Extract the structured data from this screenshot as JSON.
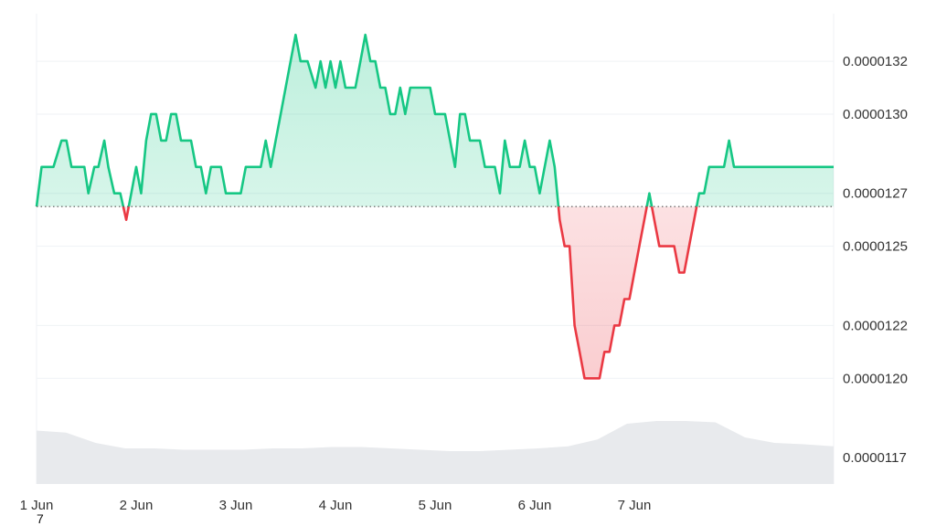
{
  "chart_data": {
    "type": "area",
    "x_tick_labels": [
      "1 Jun",
      "2 Jun",
      "3 Jun",
      "4 Jun",
      "5 Jun",
      "6 Jun",
      "7 Jun"
    ],
    "y_tick_labels": [
      "0.0000132",
      "0.0000130",
      "0.0000127",
      "0.0000125",
      "0.0000122",
      "0.0000120",
      "0.0000117"
    ],
    "y_tick_values": [
      1.32e-05,
      1.3e-05,
      1.27e-05,
      1.25e-05,
      1.22e-05,
      1.2e-05,
      1.17e-05
    ],
    "ylim": [
      1.13e-05,
      1.34e-05
    ],
    "xlim": [
      0,
      7
    ],
    "baseline": 1.265e-05,
    "gridlines": "horizontal",
    "colors": {
      "above": "#16c784",
      "below": "#ea3943",
      "volume": "#e8eaed",
      "grid": "#eff2f5"
    },
    "series": [
      {
        "values_x_days": [
          0,
          0.05,
          0.1,
          0.17,
          0.25,
          0.3,
          0.35,
          0.42,
          0.48,
          0.52,
          0.58,
          0.62,
          0.68,
          0.72,
          0.78,
          0.84,
          0.9,
          0.95,
          1.0,
          1.05,
          1.1,
          1.15,
          1.2,
          1.25,
          1.3,
          1.35,
          1.4,
          1.45,
          1.5,
          1.55,
          1.6,
          1.65,
          1.7,
          1.75,
          1.8,
          1.85,
          1.9,
          1.95,
          2.0,
          2.05,
          2.1,
          2.15,
          2.2,
          2.25,
          2.3,
          2.35,
          2.4,
          2.45,
          2.5,
          2.55,
          2.6,
          2.65,
          2.72,
          2.8,
          2.85,
          2.9,
          2.95,
          3.0,
          3.05,
          3.1,
          3.15,
          3.2,
          3.25,
          3.3,
          3.35,
          3.4,
          3.45,
          3.5,
          3.55,
          3.6,
          3.65,
          3.7,
          3.75,
          3.8,
          3.85,
          3.9,
          3.95,
          4.0,
          4.05,
          4.1,
          4.15,
          4.2,
          4.25,
          4.3,
          4.35,
          4.4,
          4.45,
          4.5,
          4.55,
          4.6,
          4.65,
          4.7,
          4.75,
          4.8,
          4.85,
          4.9,
          4.95,
          5.0,
          5.05,
          5.1,
          5.15,
          5.2,
          5.25,
          5.3,
          5.35,
          5.4,
          5.45,
          5.5,
          5.55,
          5.6,
          5.65,
          5.7,
          5.75,
          5.8,
          5.85,
          5.9,
          5.95,
          6.0,
          6.05,
          6.1,
          6.15,
          6.2,
          6.25,
          6.3,
          6.35,
          6.4,
          6.45,
          6.5,
          6.55,
          6.6,
          6.65,
          6.7,
          6.75,
          6.8,
          6.85,
          6.9,
          6.95,
          7.0,
          7.05,
          7.1,
          7.15,
          7.2,
          7.25,
          7.3,
          7.35,
          7.4,
          7.45,
          7.5,
          7.55,
          7.6,
          7.65,
          7.7,
          7.75,
          7.8,
          7.85,
          7.9,
          7.95,
          8.0
        ],
        "values": [
          1.265e-05,
          1.28e-05,
          1.28e-05,
          1.28e-05,
          1.29e-05,
          1.29e-05,
          1.28e-05,
          1.28e-05,
          1.28e-05,
          1.27e-05,
          1.28e-05,
          1.28e-05,
          1.29e-05,
          1.28e-05,
          1.27e-05,
          1.27e-05,
          1.26e-05,
          1.27e-05,
          1.28e-05,
          1.27e-05,
          1.29e-05,
          1.3e-05,
          1.3e-05,
          1.29e-05,
          1.29e-05,
          1.3e-05,
          1.3e-05,
          1.29e-05,
          1.29e-05,
          1.29e-05,
          1.28e-05,
          1.28e-05,
          1.27e-05,
          1.28e-05,
          1.28e-05,
          1.28e-05,
          1.27e-05,
          1.27e-05,
          1.27e-05,
          1.27e-05,
          1.28e-05,
          1.28e-05,
          1.28e-05,
          1.28e-05,
          1.29e-05,
          1.28e-05,
          1.29e-05,
          1.3e-05,
          1.31e-05,
          1.32e-05,
          1.33e-05,
          1.32e-05,
          1.32e-05,
          1.31e-05,
          1.32e-05,
          1.31e-05,
          1.32e-05,
          1.31e-05,
          1.32e-05,
          1.31e-05,
          1.31e-05,
          1.31e-05,
          1.32e-05,
          1.33e-05,
          1.32e-05,
          1.32e-05,
          1.31e-05,
          1.31e-05,
          1.3e-05,
          1.3e-05,
          1.31e-05,
          1.3e-05,
          1.31e-05,
          1.31e-05,
          1.31e-05,
          1.31e-05,
          1.31e-05,
          1.3e-05,
          1.3e-05,
          1.3e-05,
          1.29e-05,
          1.28e-05,
          1.3e-05,
          1.3e-05,
          1.29e-05,
          1.29e-05,
          1.29e-05,
          1.28e-05,
          1.28e-05,
          1.28e-05,
          1.27e-05,
          1.29e-05,
          1.28e-05,
          1.28e-05,
          1.28e-05,
          1.29e-05,
          1.28e-05,
          1.28e-05,
          1.27e-05,
          1.28e-05,
          1.29e-05,
          1.28e-05,
          1.26e-05,
          1.25e-05,
          1.25e-05,
          1.22e-05,
          1.21e-05,
          1.2e-05,
          1.2e-05,
          1.2e-05,
          1.2e-05,
          1.21e-05,
          1.21e-05,
          1.22e-05,
          1.22e-05,
          1.23e-05,
          1.23e-05,
          1.24e-05,
          1.25e-05,
          1.26e-05,
          1.27e-05,
          1.26e-05,
          1.25e-05,
          1.25e-05,
          1.25e-05,
          1.25e-05,
          1.24e-05,
          1.24e-05,
          1.25e-05,
          1.26e-05,
          1.27e-05,
          1.27e-05,
          1.28e-05,
          1.28e-05,
          1.28e-05,
          1.28e-05,
          1.29e-05,
          1.28e-05,
          1.28e-05,
          1.28e-05,
          1.28e-05,
          1.28e-05,
          1.28e-05,
          1.28e-05,
          1.28e-05,
          1.28e-05,
          1.28e-05,
          1.28e-05,
          1.28e-05,
          1.28e-05,
          1.28e-05,
          1.28e-05,
          1.28e-05,
          1.28e-05,
          1.28e-05,
          1.28e-05,
          1.28e-05,
          1.28e-05
        ]
      }
    ]
  },
  "extra": {
    "corner_note": "7"
  }
}
